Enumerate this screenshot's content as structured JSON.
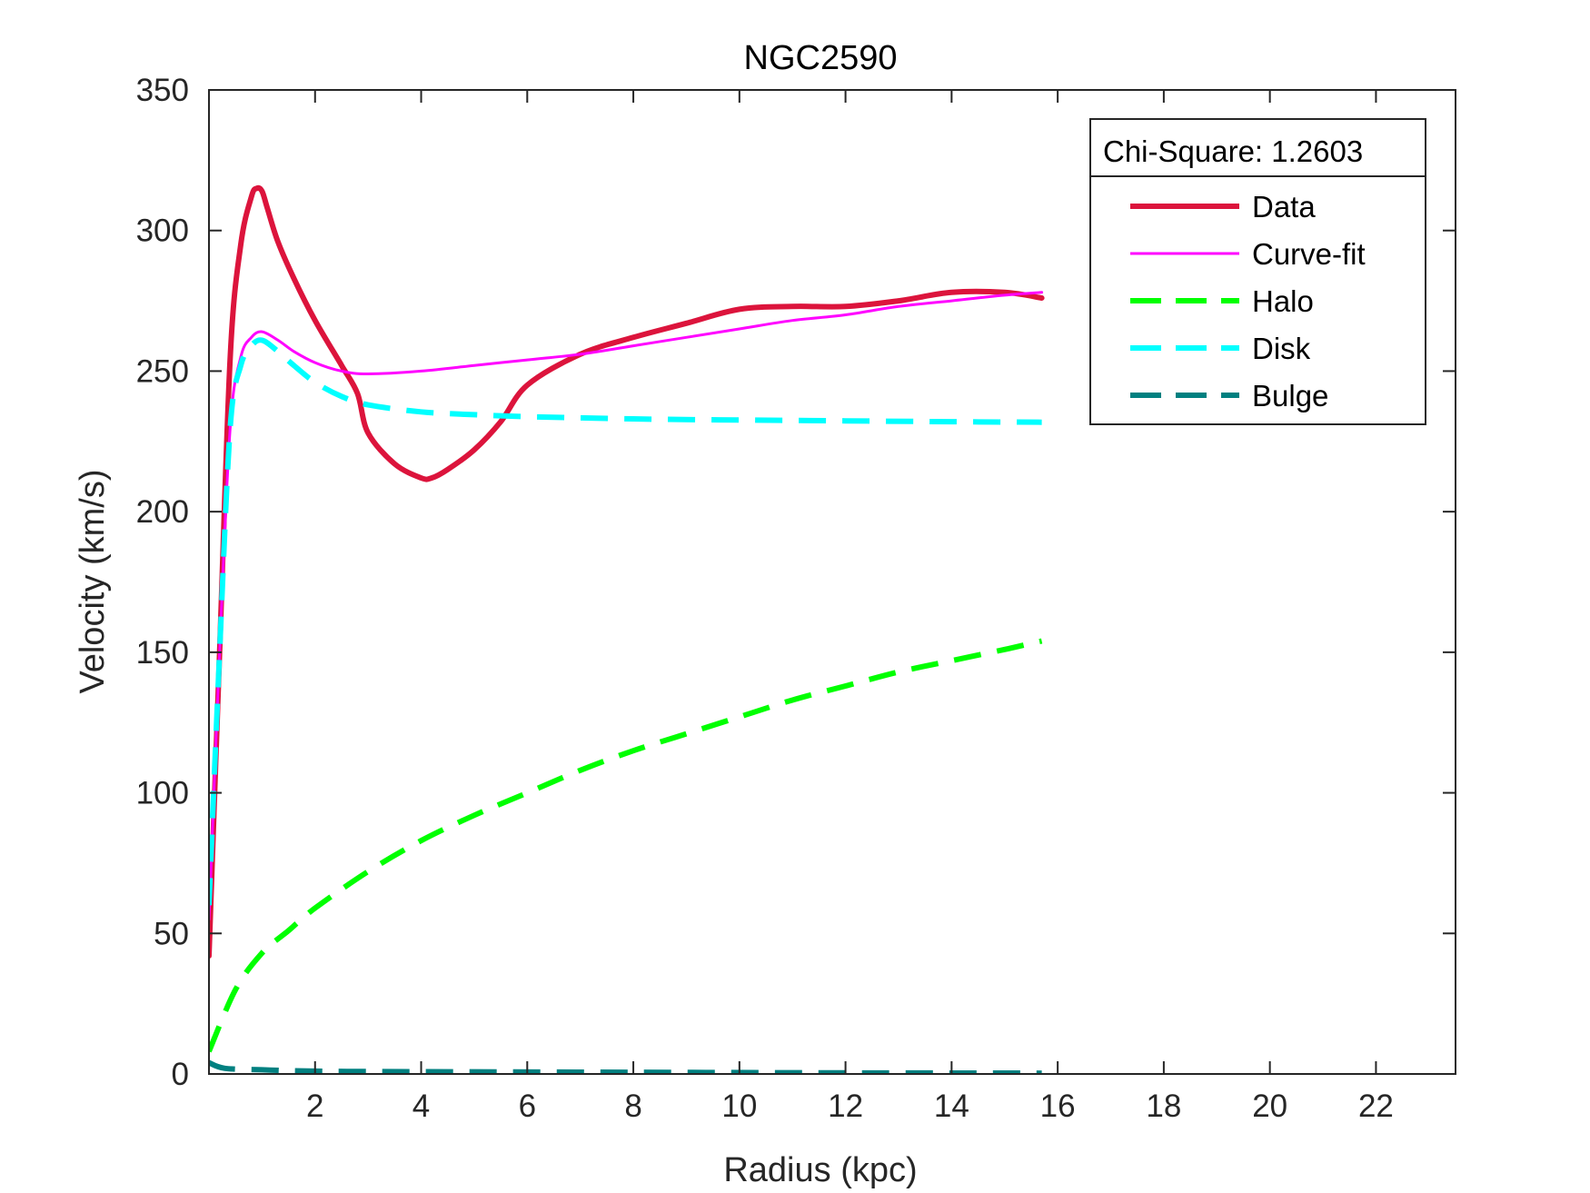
{
  "chart_data": {
    "type": "line",
    "title": "NGC2590",
    "xlabel": "Radius (kpc)",
    "ylabel": "Velocity (km/s)",
    "xlim": [
      0,
      23.5
    ],
    "ylim": [
      0,
      350
    ],
    "xticks": [
      2,
      4,
      6,
      8,
      10,
      12,
      14,
      16,
      18,
      20,
      22
    ],
    "yticks": [
      0,
      50,
      100,
      150,
      200,
      250,
      300,
      350
    ],
    "grid": false,
    "legend_header": "Chi-Square: 1.2603",
    "legend_position": "top-right",
    "series": [
      {
        "name": "Data",
        "color": "#dc143c",
        "style": "solid",
        "width": "thick",
        "points": [
          [
            0.0,
            42
          ],
          [
            0.2,
            150
          ],
          [
            0.4,
            255
          ],
          [
            0.6,
            295
          ],
          [
            0.8,
            312
          ],
          [
            0.9,
            315
          ],
          [
            1.0,
            314
          ],
          [
            1.1,
            308
          ],
          [
            1.3,
            296
          ],
          [
            1.6,
            283
          ],
          [
            2.0,
            268
          ],
          [
            2.5,
            252
          ],
          [
            2.8,
            242
          ],
          [
            3.0,
            228
          ],
          [
            3.5,
            217
          ],
          [
            4.0,
            212
          ],
          [
            4.2,
            212
          ],
          [
            4.5,
            215
          ],
          [
            5.0,
            222
          ],
          [
            5.5,
            232
          ],
          [
            6.0,
            245
          ],
          [
            7.0,
            256
          ],
          [
            8.0,
            262
          ],
          [
            9.0,
            267
          ],
          [
            10.0,
            272
          ],
          [
            11.0,
            273
          ],
          [
            12.0,
            273
          ],
          [
            13.0,
            275
          ],
          [
            14.0,
            278
          ],
          [
            15.0,
            278
          ],
          [
            15.7,
            276
          ]
        ]
      },
      {
        "name": "Curve-fit",
        "color": "#ff00ff",
        "style": "solid",
        "width": "thin",
        "points": [
          [
            0.0,
            55
          ],
          [
            0.2,
            150
          ],
          [
            0.4,
            230
          ],
          [
            0.6,
            255
          ],
          [
            0.8,
            262
          ],
          [
            1.0,
            264
          ],
          [
            1.3,
            261
          ],
          [
            1.6,
            257
          ],
          [
            2.0,
            253
          ],
          [
            2.5,
            250
          ],
          [
            3.0,
            249
          ],
          [
            4.0,
            250
          ],
          [
            5.0,
            252
          ],
          [
            6.0,
            254
          ],
          [
            7.0,
            256
          ],
          [
            8.0,
            259
          ],
          [
            9.0,
            262
          ],
          [
            10.0,
            265
          ],
          [
            11.0,
            268
          ],
          [
            12.0,
            270
          ],
          [
            13.0,
            273
          ],
          [
            14.0,
            275
          ],
          [
            15.0,
            277
          ],
          [
            15.7,
            278
          ]
        ]
      },
      {
        "name": "Halo",
        "color": "#00ff00",
        "style": "dashed",
        "width": "thick",
        "points": [
          [
            0.0,
            8
          ],
          [
            0.5,
            30
          ],
          [
            1.0,
            43
          ],
          [
            1.5,
            51
          ],
          [
            2.0,
            59
          ],
          [
            3.0,
            72
          ],
          [
            4.0,
            83
          ],
          [
            5.0,
            92
          ],
          [
            6.0,
            100
          ],
          [
            7.0,
            108
          ],
          [
            8.0,
            115
          ],
          [
            9.0,
            121
          ],
          [
            10.0,
            127
          ],
          [
            11.0,
            133
          ],
          [
            12.0,
            138
          ],
          [
            13.0,
            143
          ],
          [
            14.0,
            147
          ],
          [
            15.0,
            151
          ],
          [
            15.7,
            154
          ]
        ]
      },
      {
        "name": "Disk",
        "color": "#00ffff",
        "style": "dashed",
        "width": "thick",
        "points": [
          [
            0.0,
            60
          ],
          [
            0.2,
            150
          ],
          [
            0.4,
            230
          ],
          [
            0.6,
            252
          ],
          [
            0.8,
            259
          ],
          [
            1.0,
            261
          ],
          [
            1.3,
            257
          ],
          [
            1.6,
            252
          ],
          [
            2.0,
            246
          ],
          [
            2.5,
            241
          ],
          [
            3.0,
            238
          ],
          [
            4.0,
            235.5
          ],
          [
            5.0,
            234.5
          ],
          [
            6.0,
            233.8
          ],
          [
            8.0,
            233
          ],
          [
            10.0,
            232.6
          ],
          [
            12.0,
            232.3
          ],
          [
            14.0,
            232
          ],
          [
            15.7,
            231.8
          ]
        ]
      },
      {
        "name": "Bulge",
        "color": "#008080",
        "style": "dashed",
        "width": "thick",
        "points": [
          [
            0.0,
            4
          ],
          [
            0.3,
            2
          ],
          [
            1.0,
            1.5
          ],
          [
            2.0,
            1
          ],
          [
            4.0,
            0.8
          ],
          [
            8.0,
            0.6
          ],
          [
            12.0,
            0.4
          ],
          [
            15.7,
            0.3
          ]
        ]
      }
    ]
  }
}
